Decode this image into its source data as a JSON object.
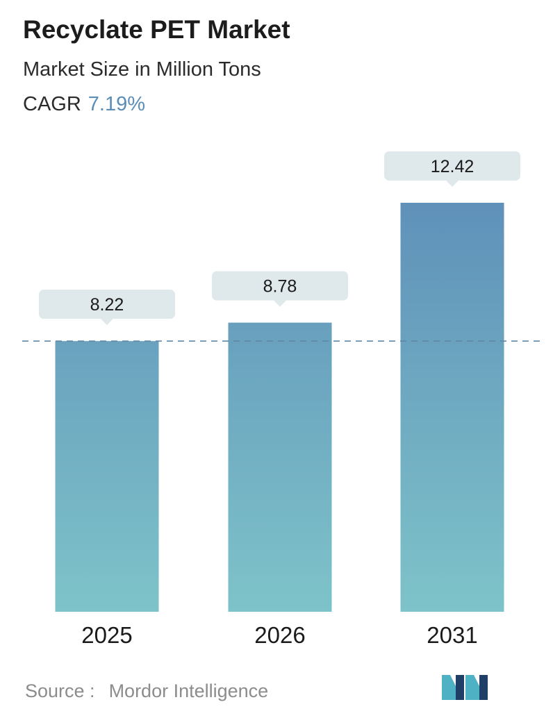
{
  "header": {
    "title": "Recyclate PET Market",
    "subtitle": "Market Size in Million Tons",
    "cagr_label": "CAGR",
    "cagr_value": "7.19%"
  },
  "footer": {
    "source_label": "Source :",
    "source_name": "Mordor Intelligence",
    "logo_icon": "mordor-intelligence-logo-icon"
  },
  "colors": {
    "bar_top": "#5f91b9",
    "bar_bottom": "#7ec3c9",
    "label_bg": "#dfe8ea",
    "dashed_line": "#5f88a8",
    "cagr_accent": "#5b8db7",
    "logo_dark": "#1f3f66",
    "logo_light": "#4fb2c4"
  },
  "chart_data": {
    "type": "bar",
    "categories": [
      "2025",
      "2026",
      "2031"
    ],
    "values": [
      8.22,
      8.78,
      12.42
    ],
    "data_labels": [
      "8.22",
      "8.78",
      "12.42"
    ],
    "reference_line": {
      "value": 8.22,
      "style": "dashed"
    },
    "ylim": [
      0,
      12.42
    ],
    "grid": false,
    "legend": "none"
  }
}
